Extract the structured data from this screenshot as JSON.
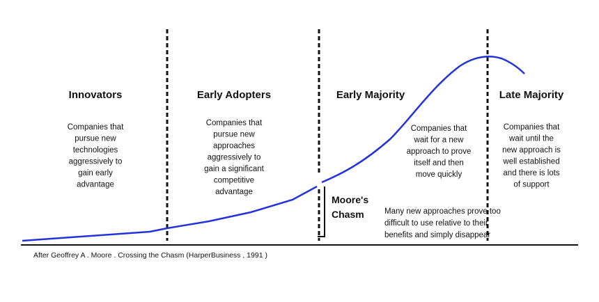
{
  "segments": [
    {
      "title": "Innovators",
      "lines": [
        "Companies that",
        "pursue new",
        "technologies",
        "aggressively to",
        "gain early",
        "advantage"
      ]
    },
    {
      "title": "Early Adopters",
      "lines": [
        "Companies that",
        "pursue new",
        "approaches",
        "aggressively to",
        "gain a significant",
        "competitive",
        "advantage"
      ]
    },
    {
      "title": "Early Majority",
      "lines": [
        "Companies that",
        "wait for a new",
        "approach to prove",
        "itself and then",
        "move quickly"
      ]
    },
    {
      "title": "Late Majority",
      "lines": [
        "Companies that",
        "wait until the",
        "new approach is",
        "well established",
        "and there is lots",
        "of support"
      ]
    }
  ],
  "chasm": {
    "lines": [
      "Moore's",
      "Chasm"
    ]
  },
  "chasm_note": {
    "lines": [
      "Many new approaches prove too",
      "difficult to use relative to their",
      "benefits and simply disappear"
    ]
  },
  "citation": "After Geoffrey A . Moore . Crossing the Chasm (HarperBusiness , 1991 )"
}
